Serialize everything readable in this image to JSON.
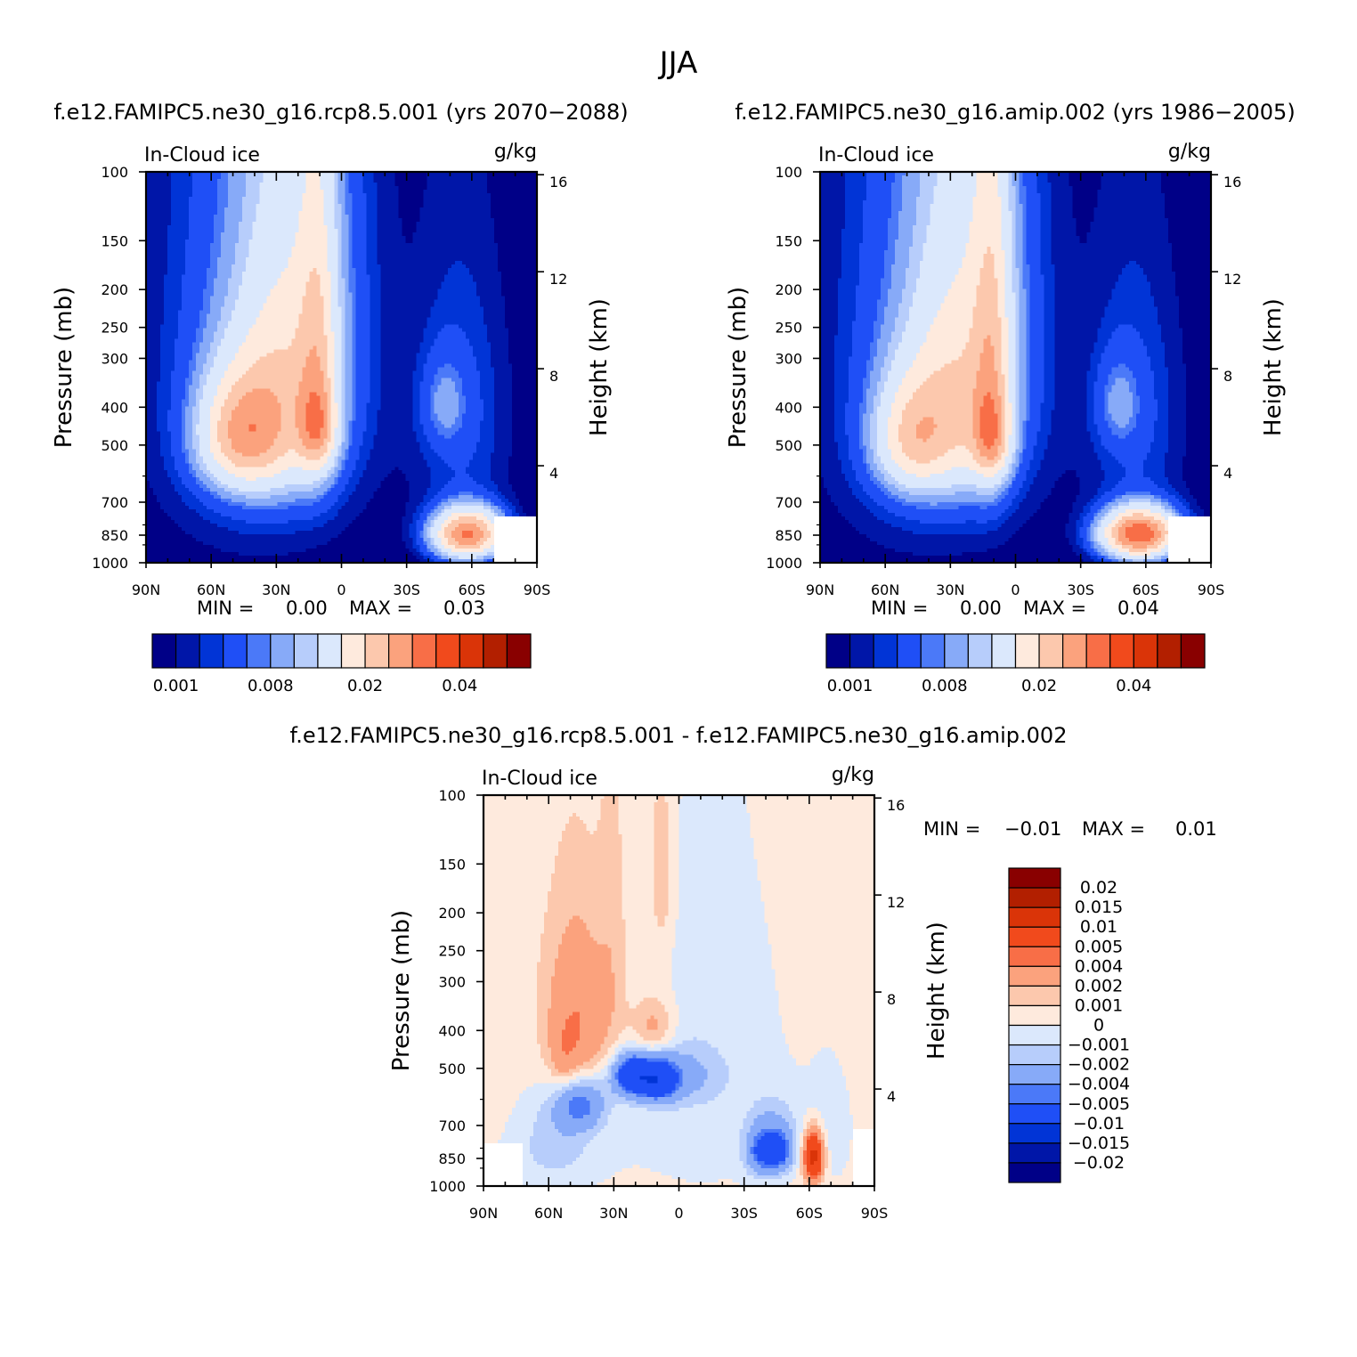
{
  "figure": {
    "title": "JJA",
    "difference_title": "f.e12.FAMIPC5.ne30_g16.rcp8.5.001 - f.e12.FAMIPC5.ne30_g16.amip.002"
  },
  "chart_data": [
    {
      "type": "heatmap",
      "panel": "left",
      "title": "f.e12.FAMIPC5.ne30_g16.rcp8.5.001 (yrs 2070-2088)",
      "variable_label": "In-Cloud ice",
      "units_label": "g/kg",
      "xlabel": "",
      "ylabel": "Pressure (mb)",
      "y2label": "Height (km)",
      "x_tick_labels": [
        "90N",
        "60N",
        "30N",
        "0",
        "30S",
        "60S",
        "90S"
      ],
      "x_ticks": [
        -90,
        -60,
        -30,
        0,
        30,
        60,
        90
      ],
      "xlim": [
        -90,
        90
      ],
      "y_tick_labels": [
        "100",
        "150",
        "200",
        "250",
        "300",
        "400",
        "500",
        "700",
        "850",
        "1000"
      ],
      "y_ticks": [
        100,
        150,
        200,
        250,
        300,
        400,
        500,
        700,
        850,
        1000
      ],
      "ylim": [
        1000,
        100
      ],
      "y2_tick_labels": [
        "16",
        "12",
        "8",
        "4"
      ],
      "y2_ticks": [
        16,
        12,
        8,
        4
      ],
      "min_label": "MIN =",
      "min_value": "0.00",
      "max_label": "MAX =",
      "max_value": "0.03",
      "colorbar_labels": [
        "0.001",
        "0.008",
        "0.02",
        "0.04"
      ],
      "features": [
        {
          "lat": -38,
          "p": 330,
          "sx": 30,
          "sy": 330,
          "amp": 0.006
        },
        {
          "lat": -20,
          "p": 230,
          "sx": 18,
          "sy": 220,
          "amp": 0.008
        },
        {
          "lat": -47,
          "p": 470,
          "sx": 13,
          "sy": 110,
          "amp": 0.018
        },
        {
          "lat": -28,
          "p": 430,
          "sx": 15,
          "sy": 150,
          "amp": 0.009
        },
        {
          "lat": -11,
          "p": 300,
          "sx": 6,
          "sy": 190,
          "amp": 0.01
        },
        {
          "lat": -11,
          "p": 455,
          "sx": 6,
          "sy": 75,
          "amp": 0.012
        },
        {
          "lat": 55,
          "p": 420,
          "sx": 15,
          "sy": 230,
          "amp": 0.0035
        },
        {
          "lat": 47,
          "p": 390,
          "sx": 7,
          "sy": 70,
          "amp": 0.004
        },
        {
          "lat": 58,
          "p": 845,
          "sx": 11,
          "sy": 85,
          "amp": 0.03
        }
      ]
    },
    {
      "type": "heatmap",
      "panel": "right",
      "title": "f.e12.FAMIPC5.ne30_g16.amip.002 (yrs 1986-2005)",
      "variable_label": "In-Cloud ice",
      "units_label": "g/kg",
      "xlabel": "",
      "ylabel": "Pressure (mb)",
      "y2label": "Height (km)",
      "x_tick_labels": [
        "90N",
        "60N",
        "30N",
        "0",
        "30S",
        "60S",
        "90S"
      ],
      "x_ticks": [
        -90,
        -60,
        -30,
        0,
        30,
        60,
        90
      ],
      "xlim": [
        -90,
        90
      ],
      "y_tick_labels": [
        "100",
        "150",
        "200",
        "250",
        "300",
        "400",
        "500",
        "700",
        "850",
        "1000"
      ],
      "y_ticks": [
        100,
        150,
        200,
        250,
        300,
        400,
        500,
        700,
        850,
        1000
      ],
      "ylim": [
        1000,
        100
      ],
      "y2_tick_labels": [
        "16",
        "12",
        "8",
        "4"
      ],
      "y2_ticks": [
        16,
        12,
        8,
        4
      ],
      "min_label": "MIN =",
      "min_value": "0.00",
      "max_label": "MAX =",
      "max_value": "0.04",
      "colorbar_labels": [
        "0.001",
        "0.008",
        "0.02",
        "0.04"
      ],
      "features": [
        {
          "lat": -38,
          "p": 330,
          "sx": 30,
          "sy": 330,
          "amp": 0.006
        },
        {
          "lat": -20,
          "p": 230,
          "sx": 18,
          "sy": 220,
          "amp": 0.008
        },
        {
          "lat": -48,
          "p": 480,
          "sx": 12,
          "sy": 110,
          "amp": 0.014
        },
        {
          "lat": -28,
          "p": 430,
          "sx": 15,
          "sy": 150,
          "amp": 0.009
        },
        {
          "lat": -11,
          "p": 300,
          "sx": 6,
          "sy": 210,
          "amp": 0.011
        },
        {
          "lat": -11,
          "p": 480,
          "sx": 6,
          "sy": 80,
          "amp": 0.013
        },
        {
          "lat": 55,
          "p": 420,
          "sx": 15,
          "sy": 230,
          "amp": 0.0035
        },
        {
          "lat": 47,
          "p": 390,
          "sx": 7,
          "sy": 70,
          "amp": 0.004
        },
        {
          "lat": 57,
          "p": 845,
          "sx": 12,
          "sy": 85,
          "amp": 0.034
        }
      ]
    },
    {
      "type": "heatmap",
      "panel": "difference",
      "title": "f.e12.FAMIPC5.ne30_g16.rcp8.5.001 - f.e12.FAMIPC5.ne30_g16.amip.002",
      "variable_label": "In-Cloud ice",
      "units_label": "g/kg",
      "xlabel": "",
      "ylabel": "Pressure (mb)",
      "y2label": "Height (km)",
      "x_tick_labels": [
        "90N",
        "60N",
        "30N",
        "0",
        "30S",
        "60S",
        "90S"
      ],
      "x_ticks": [
        -90,
        -60,
        -30,
        0,
        30,
        60,
        90
      ],
      "xlim": [
        -90,
        90
      ],
      "y_tick_labels": [
        "100",
        "150",
        "200",
        "250",
        "300",
        "400",
        "500",
        "700",
        "850",
        "1000"
      ],
      "y_ticks": [
        100,
        150,
        200,
        250,
        300,
        400,
        500,
        700,
        850,
        1000
      ],
      "ylim": [
        1000,
        100
      ],
      "y2_tick_labels": [
        "16",
        "12",
        "8",
        "4"
      ],
      "y2_ticks": [
        16,
        12,
        8,
        4
      ],
      "min_label": "MIN =",
      "min_value": "-0.01",
      "max_label": "MAX =",
      "max_value": "0.01",
      "colorbar_labels": [
        "0.02",
        "0.015",
        "0.01",
        "0.005",
        "0.004",
        "0.002",
        "0.001",
        "0",
        "-0.001",
        "-0.002",
        "-0.004",
        "-0.005",
        "-0.01",
        "-0.015",
        "-0.02"
      ],
      "features": [
        {
          "lat": -47,
          "p": 400,
          "sx": 10,
          "sy": 150,
          "amp": 0.0038
        },
        {
          "lat": -53,
          "p": 470,
          "sx": 4,
          "sy": 60,
          "amp": 0.0014
        },
        {
          "lat": -30,
          "p": 255,
          "sx": 5,
          "sy": 160,
          "amp": 0.0012
        },
        {
          "lat": -8,
          "p": 160,
          "sx": 4,
          "sy": 65,
          "amp": 0.0018
        },
        {
          "lat": -12,
          "p": 400,
          "sx": 7,
          "sy": 55,
          "amp": 0.0028
        },
        {
          "lat": -45,
          "p": 610,
          "sx": 8,
          "sy": 70,
          "amp": -0.0052
        },
        {
          "lat": -22,
          "p": 520,
          "sx": 6,
          "sy": 45,
          "amp": -0.0068
        },
        {
          "lat": -10,
          "p": 535,
          "sx": 6,
          "sy": 45,
          "amp": -0.0065
        },
        {
          "lat": -5,
          "p": 520,
          "sx": 15,
          "sy": 60,
          "amp": -0.0028
        },
        {
          "lat": -55,
          "p": 670,
          "sx": 12,
          "sy": 130,
          "amp": -0.0016
        },
        {
          "lat": 38,
          "p": 820,
          "sx": 5,
          "sy": 80,
          "amp": -0.0048
        },
        {
          "lat": 47,
          "p": 820,
          "sx": 4,
          "sy": 70,
          "amp": -0.0042
        },
        {
          "lat": 44,
          "p": 740,
          "sx": 8,
          "sy": 110,
          "amp": -0.0022
        },
        {
          "lat": 62,
          "p": 840,
          "sx": 3,
          "sy": 80,
          "amp": 0.0115
        },
        {
          "lat": 10,
          "p": 500,
          "sx": 30,
          "sy": 380,
          "amp": -0.0011
        },
        {
          "lat": 70,
          "p": 720,
          "sx": 8,
          "sy": 200,
          "amp": -0.0009
        },
        {
          "lat": -60,
          "p": 860,
          "sx": 18,
          "sy": 130,
          "amp": -0.0012
        }
      ]
    }
  ],
  "colors": {
    "background": "#ffffff",
    "abs_scale": [
      "#000087",
      "#0016a8",
      "#0134d6",
      "#1f4ff6",
      "#4b79f8",
      "#87aaf8",
      "#b7cdfb",
      "#dbe8fc",
      "#feeadd",
      "#fcc8ad",
      "#fba27d",
      "#f86e47",
      "#f14a1c",
      "#da3408",
      "#b21f00",
      "#890000"
    ],
    "diff_scale": [
      "#000087",
      "#0016a8",
      "#0134d6",
      "#1f4ff6",
      "#4b79f8",
      "#87aaf8",
      "#b7cdfb",
      "#dbe8fc",
      "#feeadd",
      "#fcc8ad",
      "#fba27d",
      "#f86e47",
      "#f14a1c",
      "#da3408",
      "#b21f00",
      "#890000"
    ]
  },
  "levels": {
    "abs": [
      0.001,
      0.002,
      0.003,
      0.005,
      0.006,
      0.008,
      0.01,
      0.015,
      0.02,
      0.025,
      0.03,
      0.035,
      0.04,
      0.045,
      0.05
    ],
    "diff": [
      -0.02,
      -0.015,
      -0.01,
      -0.005,
      -0.004,
      -0.002,
      -0.001,
      0,
      0.001,
      0.002,
      0.004,
      0.005,
      0.01,
      0.015,
      0.02
    ]
  }
}
